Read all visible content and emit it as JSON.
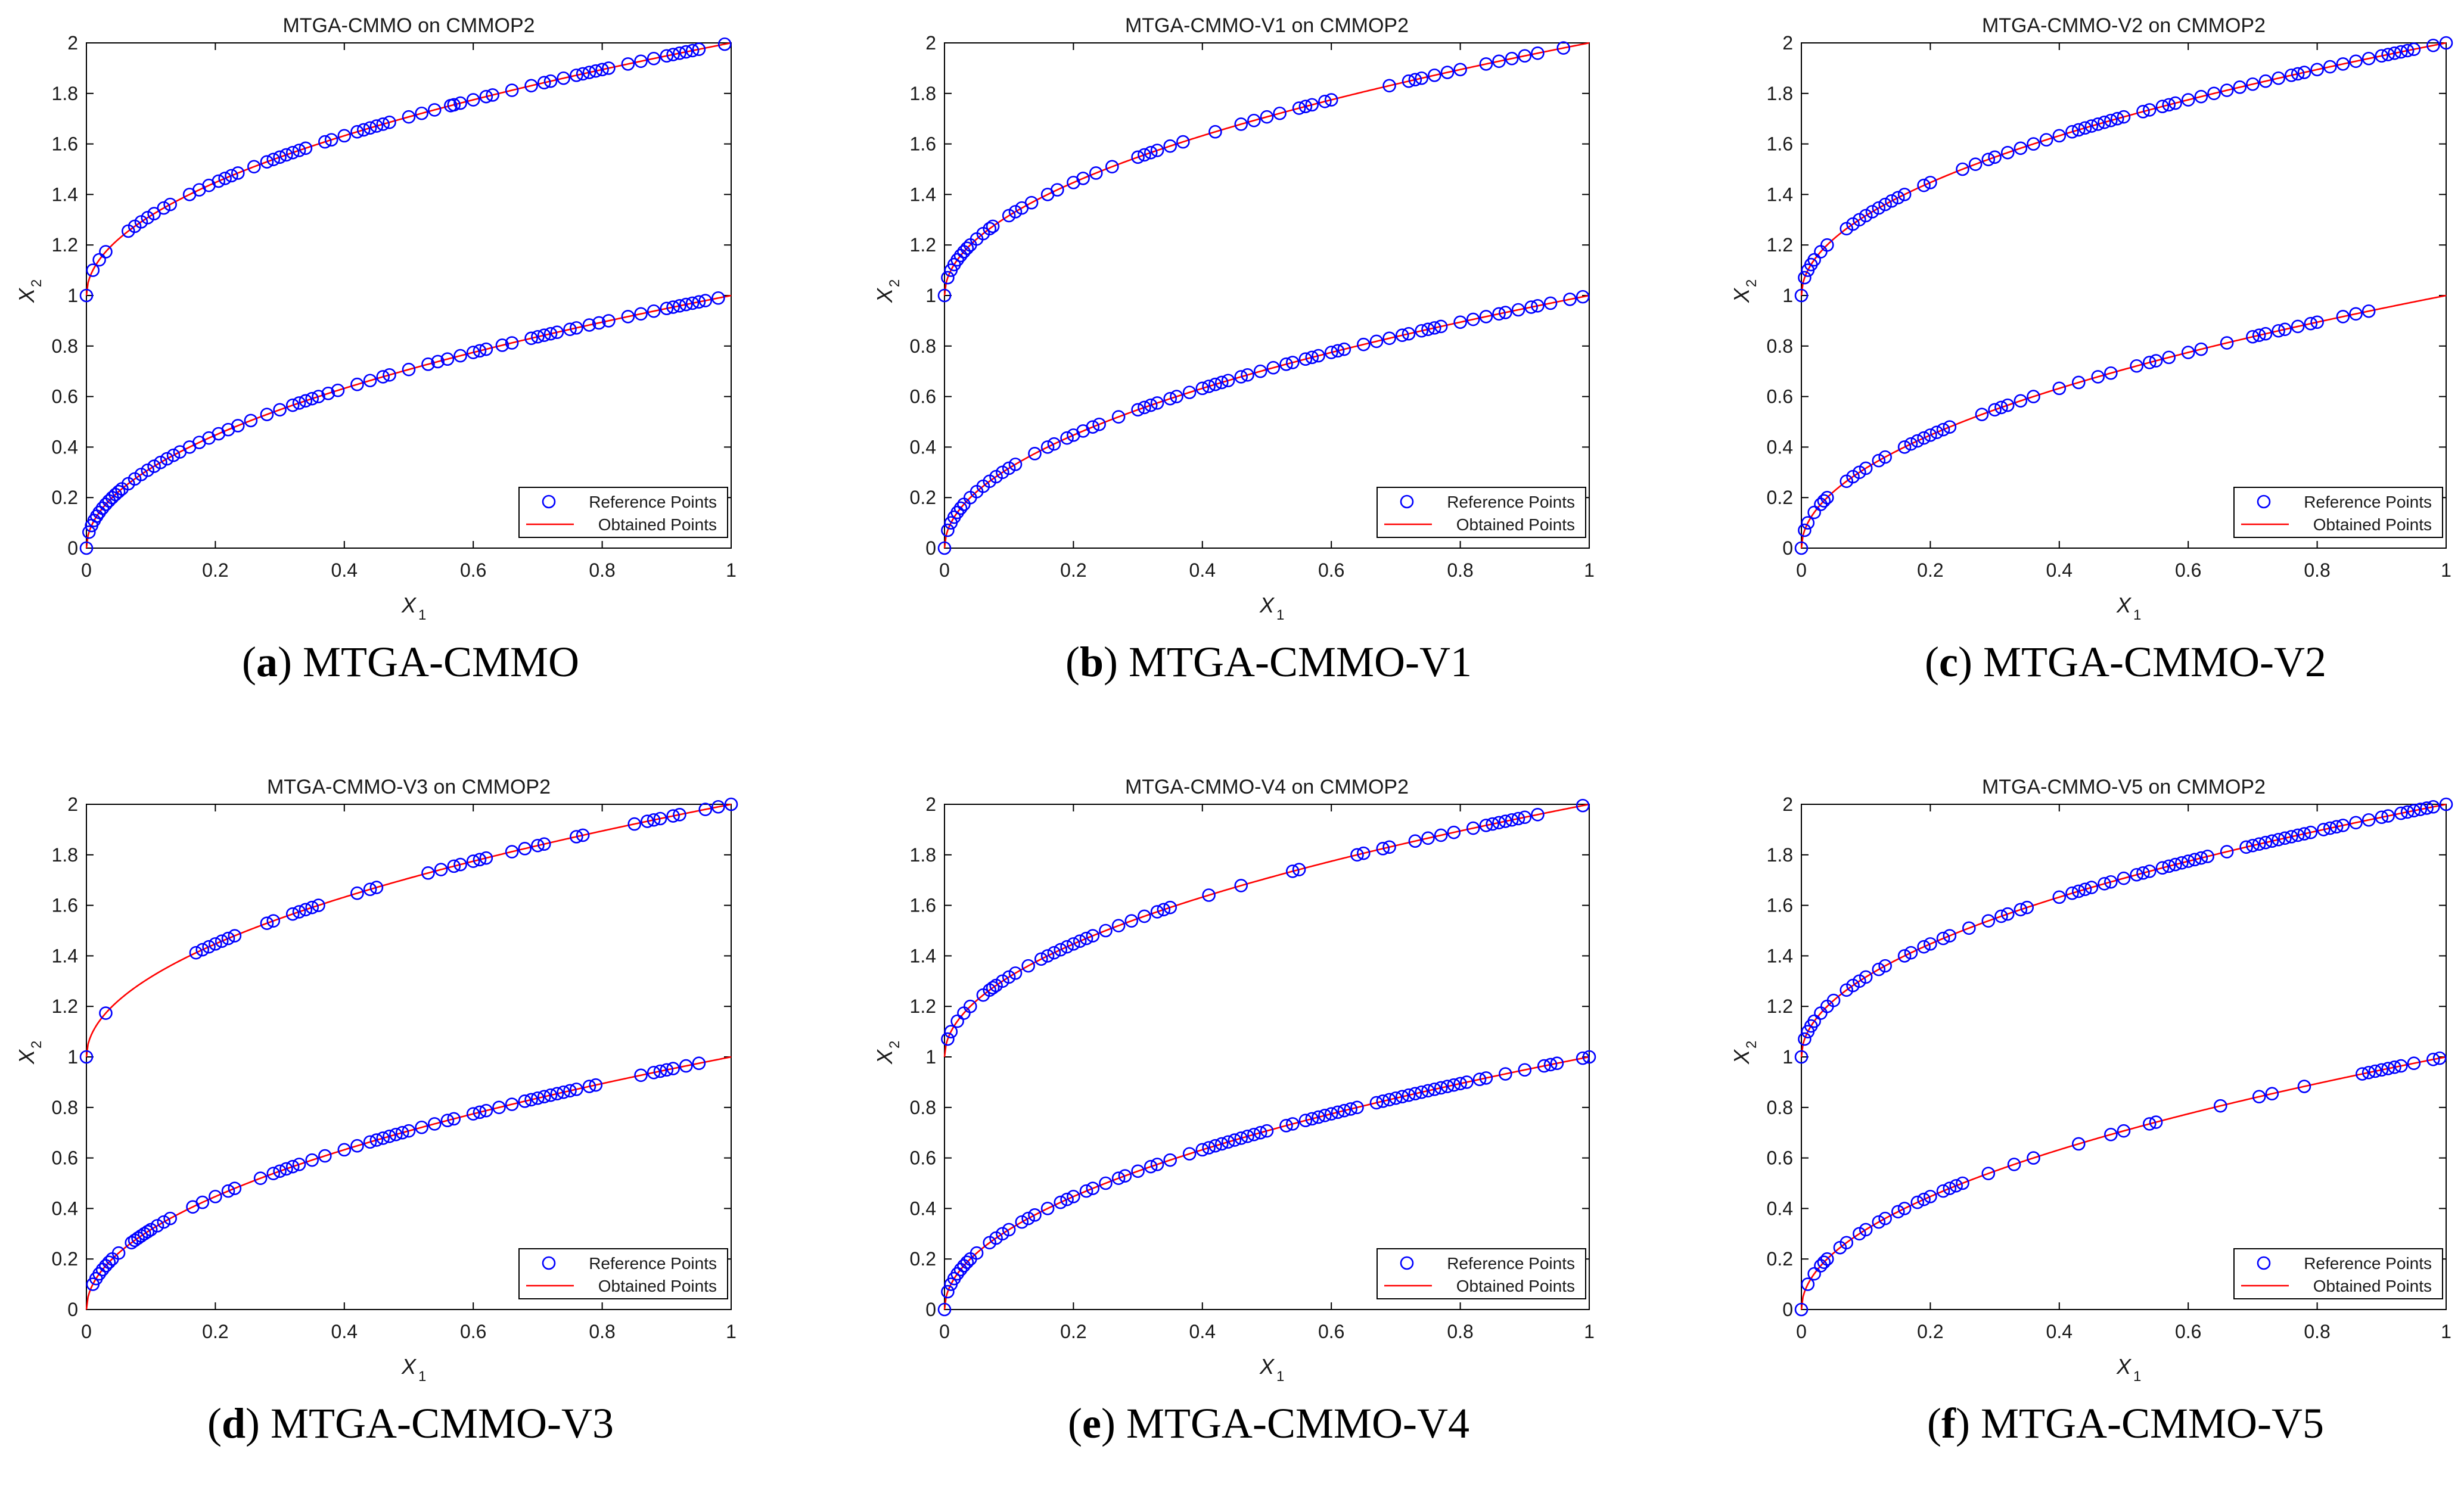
{
  "figure": {
    "legend": {
      "reference": "Reference Points",
      "obtained": "Obtained Points"
    },
    "colors": {
      "reference": "#0000ff",
      "obtained": "#ff0000",
      "axis": "#000000",
      "text": "#1a1a1a"
    }
  },
  "panels": [
    {
      "letter": "a",
      "caption": "MTGA-CMMO"
    },
    {
      "letter": "b",
      "caption": "MTGA-CMMO-V1"
    },
    {
      "letter": "c",
      "caption": "MTGA-CMMO-V2"
    },
    {
      "letter": "d",
      "caption": "MTGA-CMMO-V3"
    },
    {
      "letter": "e",
      "caption": "MTGA-CMMO-V4"
    },
    {
      "letter": "f",
      "caption": "MTGA-CMMO-V5"
    }
  ],
  "chart_data": [
    {
      "type": "scatter",
      "title": "MTGA-CMMO on CMMOP2",
      "xlabel": "X",
      "xlabel_sub": "1",
      "ylabel": "X",
      "ylabel_sub": "2",
      "xlim": [
        0,
        1
      ],
      "ylim": [
        0,
        2
      ],
      "xticks": [
        "0",
        "0.2",
        "0.4",
        "0.6",
        "0.8",
        "1"
      ],
      "yticks": [
        "0",
        "0.2",
        "0.4",
        "0.6",
        "0.8",
        "1",
        "1.2",
        "1.4",
        "1.6",
        "1.8",
        "2"
      ],
      "series": [
        {
          "name": "Reference Points",
          "kind": "markers",
          "curve": "lower-and-upper",
          "lower_x": [
            0.0,
            0.004,
            0.008,
            0.012,
            0.016,
            0.02,
            0.025,
            0.03,
            0.035,
            0.04,
            0.045,
            0.05,
            0.055,
            0.065,
            0.075,
            0.085,
            0.095,
            0.105,
            0.115,
            0.125,
            0.135,
            0.145,
            0.16,
            0.175,
            0.19,
            0.205,
            0.22,
            0.235,
            0.255,
            0.28,
            0.3,
            0.32,
            0.33,
            0.34,
            0.35,
            0.36,
            0.375,
            0.39,
            0.42,
            0.44,
            0.46,
            0.47,
            0.5,
            0.53,
            0.545,
            0.56,
            0.58,
            0.6,
            0.61,
            0.62,
            0.645,
            0.66,
            0.69,
            0.7,
            0.71,
            0.72,
            0.73,
            0.75,
            0.76,
            0.78,
            0.795,
            0.81,
            0.84,
            0.86,
            0.88,
            0.9,
            0.91,
            0.92,
            0.93,
            0.94,
            0.95,
            0.96,
            0.98
          ],
          "upper_x": [
            0.0,
            0.01,
            0.02,
            0.03,
            0.065,
            0.075,
            0.085,
            0.095,
            0.105,
            0.12,
            0.13,
            0.16,
            0.175,
            0.19,
            0.205,
            0.215,
            0.225,
            0.235,
            0.26,
            0.28,
            0.29,
            0.3,
            0.31,
            0.32,
            0.33,
            0.34,
            0.37,
            0.38,
            0.4,
            0.42,
            0.43,
            0.44,
            0.45,
            0.46,
            0.47,
            0.5,
            0.52,
            0.54,
            0.565,
            0.57,
            0.58,
            0.6,
            0.62,
            0.63,
            0.66,
            0.69,
            0.71,
            0.72,
            0.74,
            0.76,
            0.77,
            0.78,
            0.79,
            0.8,
            0.81,
            0.84,
            0.86,
            0.88,
            0.9,
            0.91,
            0.92,
            0.93,
            0.94,
            0.95,
            0.99
          ]
        },
        {
          "name": "Obtained Points",
          "kind": "line",
          "lower": "x2 = sqrt(x1)",
          "upper": "x2 = 1 + sqrt(x1)"
        }
      ],
      "legend_position": "bottom-right"
    },
    {
      "type": "scatter",
      "title": "MTGA-CMMO-V1 on CMMOP2",
      "xlabel": "X",
      "xlabel_sub": "1",
      "ylabel": "X",
      "ylabel_sub": "2",
      "xlim": [
        0,
        1
      ],
      "ylim": [
        0,
        2
      ],
      "xticks": [
        "0",
        "0.2",
        "0.4",
        "0.6",
        "0.8",
        "1"
      ],
      "yticks": [
        "0",
        "0.2",
        "0.4",
        "0.6",
        "0.8",
        "1",
        "1.2",
        "1.4",
        "1.6",
        "1.8",
        "2"
      ],
      "series": [
        {
          "name": "Reference Points",
          "kind": "markers",
          "lower_x": [
            0.0,
            0.005,
            0.01,
            0.015,
            0.02,
            0.025,
            0.03,
            0.04,
            0.05,
            0.06,
            0.07,
            0.08,
            0.09,
            0.1,
            0.11,
            0.14,
            0.16,
            0.17,
            0.19,
            0.2,
            0.215,
            0.23,
            0.24,
            0.27,
            0.3,
            0.31,
            0.32,
            0.33,
            0.35,
            0.36,
            0.38,
            0.4,
            0.41,
            0.42,
            0.43,
            0.44,
            0.46,
            0.47,
            0.49,
            0.51,
            0.53,
            0.54,
            0.56,
            0.57,
            0.58,
            0.6,
            0.61,
            0.62,
            0.65,
            0.67,
            0.69,
            0.71,
            0.72,
            0.74,
            0.75,
            0.76,
            0.77,
            0.8,
            0.82,
            0.84,
            0.86,
            0.87,
            0.89,
            0.91,
            0.92,
            0.94,
            0.97,
            0.99
          ],
          "upper_x": [
            0.0,
            0.005,
            0.01,
            0.015,
            0.02,
            0.025,
            0.03,
            0.035,
            0.04,
            0.05,
            0.06,
            0.07,
            0.075,
            0.1,
            0.11,
            0.12,
            0.135,
            0.16,
            0.175,
            0.2,
            0.215,
            0.235,
            0.26,
            0.3,
            0.31,
            0.32,
            0.33,
            0.35,
            0.37,
            0.42,
            0.46,
            0.48,
            0.5,
            0.52,
            0.55,
            0.56,
            0.57,
            0.59,
            0.6,
            0.69,
            0.72,
            0.73,
            0.74,
            0.76,
            0.78,
            0.8,
            0.84,
            0.86,
            0.88,
            0.9,
            0.92,
            0.96
          ]
        },
        {
          "name": "Obtained Points",
          "kind": "line",
          "lower": "x2 = sqrt(x1)",
          "upper": "x2 = 1 + sqrt(x1)"
        }
      ],
      "legend_position": "bottom-right"
    },
    {
      "type": "scatter",
      "title": "MTGA-CMMO-V2 on CMMOP2",
      "xlabel": "X",
      "xlabel_sub": "1",
      "ylabel": "X",
      "ylabel_sub": "2",
      "xlim": [
        0,
        1
      ],
      "ylim": [
        0,
        2
      ],
      "xticks": [
        "0",
        "0.2",
        "0.4",
        "0.6",
        "0.8",
        "1"
      ],
      "yticks": [
        "0",
        "0.2",
        "0.4",
        "0.6",
        "0.8",
        "1",
        "1.2",
        "1.4",
        "1.6",
        "1.8",
        "2"
      ],
      "series": [
        {
          "name": "Reference Points",
          "kind": "markers",
          "lower_x": [
            0.0,
            0.005,
            0.01,
            0.02,
            0.03,
            0.035,
            0.04,
            0.07,
            0.08,
            0.09,
            0.1,
            0.12,
            0.13,
            0.16,
            0.17,
            0.18,
            0.19,
            0.2,
            0.21,
            0.22,
            0.23,
            0.28,
            0.3,
            0.31,
            0.32,
            0.34,
            0.36,
            0.4,
            0.43,
            0.46,
            0.48,
            0.52,
            0.54,
            0.55,
            0.57,
            0.6,
            0.62,
            0.66,
            0.7,
            0.71,
            0.72,
            0.74,
            0.75,
            0.77,
            0.79,
            0.8,
            0.84,
            0.86,
            0.88
          ],
          "upper_x": [
            0.0,
            0.005,
            0.01,
            0.015,
            0.02,
            0.03,
            0.04,
            0.07,
            0.08,
            0.09,
            0.1,
            0.11,
            0.12,
            0.13,
            0.14,
            0.15,
            0.16,
            0.19,
            0.2,
            0.25,
            0.27,
            0.29,
            0.3,
            0.32,
            0.34,
            0.36,
            0.38,
            0.4,
            0.42,
            0.43,
            0.44,
            0.45,
            0.46,
            0.47,
            0.48,
            0.49,
            0.5,
            0.53,
            0.54,
            0.56,
            0.57,
            0.58,
            0.6,
            0.62,
            0.64,
            0.66,
            0.68,
            0.7,
            0.72,
            0.74,
            0.76,
            0.77,
            0.78,
            0.8,
            0.82,
            0.84,
            0.86,
            0.88,
            0.9,
            0.91,
            0.92,
            0.93,
            0.94,
            0.95,
            0.98,
            1.0
          ]
        },
        {
          "name": "Obtained Points",
          "kind": "line",
          "lower": "x2 = sqrt(x1)",
          "upper": "x2 = 1 + sqrt(x1)"
        }
      ],
      "legend_position": "bottom-right"
    },
    {
      "type": "scatter",
      "title": "MTGA-CMMO-V3 on CMMOP2",
      "xlabel": "X",
      "xlabel_sub": "1",
      "ylabel": "X",
      "ylabel_sub": "2",
      "xlim": [
        0,
        1
      ],
      "ylim": [
        0,
        2
      ],
      "xticks": [
        "0",
        "0.2",
        "0.4",
        "0.6",
        "0.8",
        "1"
      ],
      "yticks": [
        "0",
        "0.2",
        "0.4",
        "0.6",
        "0.8",
        "1",
        "1.2",
        "1.4",
        "1.6",
        "1.8",
        "2"
      ],
      "series": [
        {
          "name": "Reference Points",
          "kind": "markers",
          "lower_x": [
            0.01,
            0.015,
            0.02,
            0.025,
            0.03,
            0.035,
            0.04,
            0.05,
            0.07,
            0.075,
            0.08,
            0.085,
            0.09,
            0.095,
            0.1,
            0.11,
            0.12,
            0.13,
            0.165,
            0.18,
            0.2,
            0.22,
            0.23,
            0.27,
            0.29,
            0.3,
            0.31,
            0.32,
            0.33,
            0.35,
            0.37,
            0.4,
            0.42,
            0.44,
            0.45,
            0.46,
            0.47,
            0.48,
            0.49,
            0.5,
            0.52,
            0.54,
            0.56,
            0.57,
            0.6,
            0.61,
            0.62,
            0.64,
            0.66,
            0.68,
            0.69,
            0.7,
            0.71,
            0.72,
            0.73,
            0.74,
            0.75,
            0.76,
            0.78,
            0.79,
            0.86,
            0.88,
            0.89,
            0.9,
            0.91,
            0.93,
            0.95
          ],
          "upper_x": [
            0.0,
            0.03,
            0.17,
            0.18,
            0.19,
            0.2,
            0.21,
            0.22,
            0.23,
            0.28,
            0.29,
            0.32,
            0.33,
            0.34,
            0.35,
            0.36,
            0.42,
            0.44,
            0.45,
            0.53,
            0.55,
            0.57,
            0.58,
            0.6,
            0.61,
            0.62,
            0.66,
            0.68,
            0.7,
            0.71,
            0.76,
            0.77,
            0.85,
            0.87,
            0.88,
            0.89,
            0.91,
            0.92,
            0.96,
            0.98,
            1.0
          ]
        },
        {
          "name": "Obtained Points",
          "kind": "line",
          "lower": "x2 = sqrt(x1)",
          "upper": "x2 = 1 + sqrt(x1)"
        }
      ],
      "legend_position": "bottom-right"
    },
    {
      "type": "scatter",
      "title": "MTGA-CMMO-V4 on CMMOP2",
      "xlabel": "X",
      "xlabel_sub": "1",
      "ylabel": "X",
      "ylabel_sub": "2",
      "xlim": [
        0,
        1
      ],
      "ylim": [
        0,
        2
      ],
      "xticks": [
        "0",
        "0.2",
        "0.4",
        "0.6",
        "0.8",
        "1"
      ],
      "yticks": [
        "0",
        "0.2",
        "0.4",
        "0.6",
        "0.8",
        "1",
        "1.2",
        "1.4",
        "1.6",
        "1.8",
        "2"
      ],
      "series": [
        {
          "name": "Reference Points",
          "kind": "markers",
          "lower_x": [
            0.0,
            0.005,
            0.01,
            0.015,
            0.02,
            0.025,
            0.03,
            0.035,
            0.04,
            0.05,
            0.07,
            0.08,
            0.09,
            0.1,
            0.12,
            0.13,
            0.14,
            0.16,
            0.18,
            0.19,
            0.2,
            0.22,
            0.23,
            0.25,
            0.27,
            0.28,
            0.3,
            0.32,
            0.33,
            0.35,
            0.38,
            0.4,
            0.41,
            0.42,
            0.43,
            0.44,
            0.45,
            0.46,
            0.47,
            0.48,
            0.49,
            0.5,
            0.53,
            0.54,
            0.56,
            0.57,
            0.58,
            0.59,
            0.6,
            0.61,
            0.62,
            0.63,
            0.64,
            0.67,
            0.68,
            0.69,
            0.7,
            0.71,
            0.72,
            0.73,
            0.74,
            0.75,
            0.76,
            0.77,
            0.78,
            0.79,
            0.8,
            0.81,
            0.83,
            0.84,
            0.87,
            0.9,
            0.93,
            0.94,
            0.95,
            0.99,
            1.0
          ],
          "upper_x": [
            0.005,
            0.01,
            0.02,
            0.03,
            0.04,
            0.06,
            0.07,
            0.075,
            0.08,
            0.09,
            0.1,
            0.11,
            0.13,
            0.15,
            0.16,
            0.17,
            0.18,
            0.19,
            0.2,
            0.21,
            0.22,
            0.23,
            0.25,
            0.27,
            0.29,
            0.31,
            0.33,
            0.34,
            0.35,
            0.41,
            0.46,
            0.54,
            0.55,
            0.64,
            0.65,
            0.68,
            0.69,
            0.73,
            0.75,
            0.77,
            0.79,
            0.82,
            0.84,
            0.85,
            0.86,
            0.87,
            0.88,
            0.89,
            0.9,
            0.92,
            0.99
          ]
        },
        {
          "name": "Obtained Points",
          "kind": "line",
          "lower": "x2 = sqrt(x1)",
          "upper": "x2 = 1 + sqrt(x1)"
        }
      ],
      "legend_position": "bottom-right"
    },
    {
      "type": "scatter",
      "title": "MTGA-CMMO-V5 on CMMOP2",
      "xlabel": "X",
      "xlabel_sub": "1",
      "ylabel": "X",
      "ylabel_sub": "2",
      "xlim": [
        0,
        1
      ],
      "ylim": [
        0,
        2
      ],
      "xticks": [
        "0",
        "0.2",
        "0.4",
        "0.6",
        "0.8",
        "1"
      ],
      "yticks": [
        "0",
        "0.2",
        "0.4",
        "0.6",
        "0.8",
        "1",
        "1.2",
        "1.4",
        "1.6",
        "1.8",
        "2"
      ],
      "series": [
        {
          "name": "Reference Points",
          "kind": "markers",
          "lower_x": [
            0.0,
            0.01,
            0.02,
            0.03,
            0.035,
            0.04,
            0.06,
            0.07,
            0.09,
            0.1,
            0.12,
            0.13,
            0.15,
            0.16,
            0.18,
            0.19,
            0.2,
            0.22,
            0.23,
            0.24,
            0.25,
            0.29,
            0.33,
            0.36,
            0.43,
            0.48,
            0.5,
            0.54,
            0.55,
            0.65,
            0.71,
            0.73,
            0.78,
            0.87,
            0.88,
            0.89,
            0.9,
            0.91,
            0.92,
            0.93,
            0.95,
            0.98,
            0.99
          ],
          "upper_x": [
            0.0,
            0.005,
            0.01,
            0.015,
            0.02,
            0.03,
            0.04,
            0.05,
            0.07,
            0.08,
            0.09,
            0.1,
            0.12,
            0.13,
            0.16,
            0.17,
            0.19,
            0.2,
            0.22,
            0.23,
            0.26,
            0.29,
            0.31,
            0.32,
            0.34,
            0.35,
            0.4,
            0.42,
            0.43,
            0.44,
            0.45,
            0.47,
            0.48,
            0.5,
            0.52,
            0.53,
            0.54,
            0.56,
            0.57,
            0.58,
            0.59,
            0.6,
            0.61,
            0.62,
            0.63,
            0.66,
            0.69,
            0.7,
            0.71,
            0.72,
            0.73,
            0.74,
            0.75,
            0.76,
            0.77,
            0.78,
            0.79,
            0.81,
            0.82,
            0.83,
            0.84,
            0.86,
            0.88,
            0.9,
            0.91,
            0.93,
            0.94,
            0.95,
            0.96,
            0.97,
            0.98,
            1.0
          ]
        },
        {
          "name": "Obtained Points",
          "kind": "line",
          "lower": "x2 = sqrt(x1)",
          "upper": "x2 = 1 + sqrt(x1)"
        }
      ],
      "legend_position": "bottom-right"
    }
  ]
}
